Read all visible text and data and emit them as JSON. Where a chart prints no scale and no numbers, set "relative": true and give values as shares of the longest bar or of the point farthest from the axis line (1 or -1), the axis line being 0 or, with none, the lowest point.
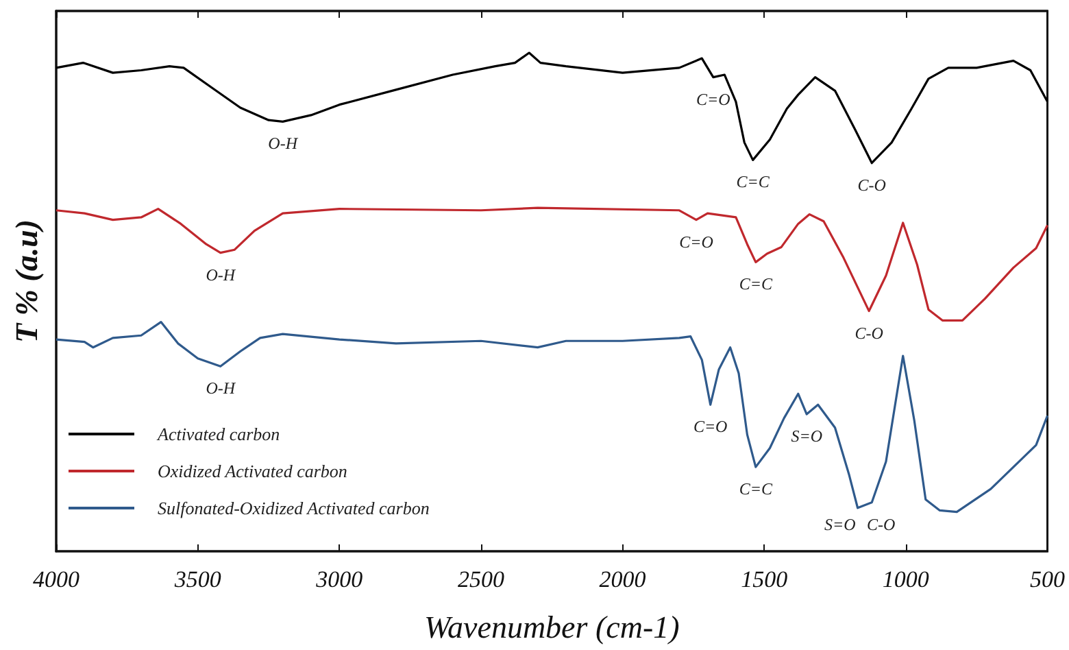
{
  "chart_data": {
    "type": "line",
    "relative": true,
    "xlabel": "Wavenumber (cm-1)",
    "ylabel": "T % (a.u)",
    "xlim": [
      4000,
      500
    ],
    "xticks": [
      4000,
      3500,
      3000,
      2500,
      2000,
      1500,
      1000,
      500
    ],
    "grid": false,
    "legend": "bottom left",
    "marker": "none",
    "line_style": "solid",
    "series": [
      {
        "name": "Activated carbon",
        "color": "#000000",
        "x": [
          4000,
          3905,
          3800,
          3700,
          3600,
          3550,
          3450,
          3350,
          3250,
          3200,
          3100,
          3000,
          2800,
          2600,
          2450,
          2380,
          2330,
          2290,
          2200,
          2000,
          1800,
          1720,
          1680,
          1640,
          1600,
          1570,
          1540,
          1480,
          1420,
          1380,
          1320,
          1250,
          1180,
          1120,
          1050,
          980,
          920,
          850,
          750,
          620,
          560,
          500
        ],
        "values": [
          0.97,
          0.98,
          0.96,
          0.965,
          0.973,
          0.97,
          0.93,
          0.89,
          0.865,
          0.862,
          0.875,
          0.896,
          0.926,
          0.956,
          0.973,
          0.98,
          1.0,
          0.98,
          0.973,
          0.96,
          0.97,
          0.989,
          0.951,
          0.956,
          0.902,
          0.82,
          0.785,
          0.826,
          0.888,
          0.916,
          0.951,
          0.924,
          0.847,
          0.779,
          0.82,
          0.888,
          0.948,
          0.97,
          0.97,
          0.984,
          0.965,
          0.902
        ]
      },
      {
        "name": "Oxidized Activated carbon",
        "color": "#c0282d",
        "x": [
          4000,
          3900,
          3800,
          3700,
          3640,
          3560,
          3470,
          3420,
          3370,
          3300,
          3200,
          3000,
          2500,
          2300,
          1800,
          1740,
          1700,
          1600,
          1560,
          1530,
          1490,
          1440,
          1380,
          1340,
          1290,
          1220,
          1130,
          1070,
          1010,
          960,
          920,
          870,
          800,
          720,
          620,
          540,
          500
        ],
        "values": [
          0.684,
          0.678,
          0.665,
          0.67,
          0.687,
          0.657,
          0.616,
          0.599,
          0.605,
          0.643,
          0.678,
          0.687,
          0.684,
          0.689,
          0.684,
          0.665,
          0.678,
          0.67,
          0.616,
          0.58,
          0.597,
          0.61,
          0.657,
          0.676,
          0.662,
          0.589,
          0.482,
          0.553,
          0.659,
          0.575,
          0.485,
          0.463,
          0.463,
          0.507,
          0.569,
          0.608,
          0.654
        ]
      },
      {
        "name": "Sulfonated-Oxidized Activated carbon",
        "color": "#2f5a8c",
        "x": [
          4000,
          3900,
          3870,
          3800,
          3700,
          3630,
          3570,
          3500,
          3420,
          3350,
          3280,
          3200,
          3000,
          2800,
          2500,
          2300,
          2200,
          2000,
          1800,
          1760,
          1720,
          1690,
          1660,
          1620,
          1590,
          1560,
          1530,
          1480,
          1430,
          1380,
          1350,
          1310,
          1250,
          1200,
          1170,
          1120,
          1070,
          1010,
          970,
          930,
          880,
          820,
          700,
          600,
          540,
          500
        ],
        "values": [
          0.425,
          0.42,
          0.409,
          0.428,
          0.433,
          0.46,
          0.417,
          0.387,
          0.371,
          0.401,
          0.428,
          0.436,
          0.425,
          0.417,
          0.422,
          0.409,
          0.422,
          0.422,
          0.428,
          0.431,
          0.384,
          0.294,
          0.365,
          0.409,
          0.357,
          0.234,
          0.169,
          0.207,
          0.267,
          0.316,
          0.275,
          0.294,
          0.248,
          0.153,
          0.087,
          0.098,
          0.18,
          0.392,
          0.262,
          0.104,
          0.082,
          0.079,
          0.125,
          0.18,
          0.213,
          0.272
        ]
      }
    ],
    "annotations": [
      {
        "text": "O-H",
        "x": 3200,
        "y": 0.862
      },
      {
        "text": "C=O",
        "x": 1680,
        "y": 0.951
      },
      {
        "text": "C=C",
        "x": 1540,
        "y": 0.785
      },
      {
        "text": "C-O",
        "x": 1120,
        "y": 0.779
      },
      {
        "text": "O-H",
        "x": 3420,
        "y": 0.599
      },
      {
        "text": "C=O",
        "x": 1740,
        "y": 0.665
      },
      {
        "text": "C=C",
        "x": 1530,
        "y": 0.58
      },
      {
        "text": "C-O",
        "x": 1130,
        "y": 0.482
      },
      {
        "text": "O-H",
        "x": 3420,
        "y": 0.371
      },
      {
        "text": "C=O",
        "x": 1690,
        "y": 0.294
      },
      {
        "text": "C=C",
        "x": 1530,
        "y": 0.169
      },
      {
        "text": "S=O",
        "x": 1350,
        "y": 0.275
      },
      {
        "text": "S=O",
        "x": 1200,
        "y": 0.153
      },
      {
        "text": "C-O",
        "x": 1120,
        "y": 0.098
      }
    ]
  }
}
